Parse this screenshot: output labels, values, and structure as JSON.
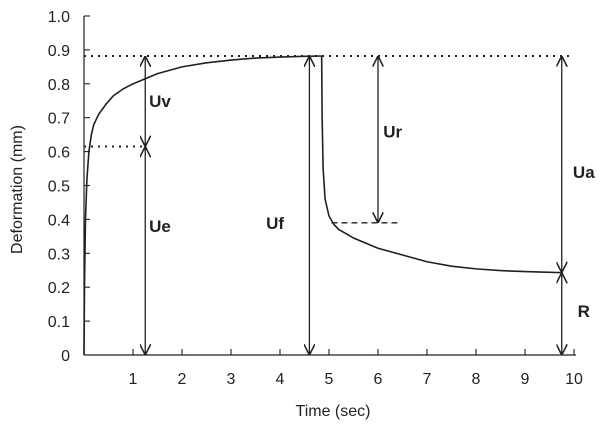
{
  "chart_data": {
    "type": "line",
    "title": "",
    "xlabel": "Time (sec)",
    "ylabel": "Deformation (mm)",
    "xlim": [
      0,
      10
    ],
    "ylim": [
      0,
      1.0
    ],
    "x_ticks": [
      1,
      2,
      3,
      4,
      5,
      6,
      7,
      8,
      9,
      10
    ],
    "y_ticks": [
      "0",
      "0.1",
      "0.2",
      "0.3",
      "0.4",
      "0.5",
      "0.6",
      "0.7",
      "0.8",
      "0.9",
      "1.0"
    ],
    "grid": false,
    "series": [
      {
        "x": [
          0,
          0.01,
          0.03,
          0.06,
          0.1,
          0.15,
          0.2,
          0.3,
          0.45,
          0.6,
          0.8,
          1.0,
          1.25,
          1.5,
          2.0,
          2.5,
          3.0,
          3.5,
          4.0,
          4.5,
          4.85
        ],
        "y": [
          0,
          0.2,
          0.4,
          0.52,
          0.6,
          0.65,
          0.68,
          0.71,
          0.74,
          0.765,
          0.785,
          0.8,
          0.815,
          0.83,
          0.85,
          0.862,
          0.87,
          0.876,
          0.879,
          0.881,
          0.882
        ]
      },
      {
        "x": [
          4.85,
          4.86,
          4.88,
          4.92,
          5.0,
          5.1,
          5.2,
          5.35,
          5.5,
          5.75,
          6.0,
          6.5,
          7.0,
          7.5,
          8.0,
          8.5,
          9.0,
          9.5,
          9.75
        ],
        "y": [
          0.882,
          0.7,
          0.55,
          0.46,
          0.41,
          0.385,
          0.37,
          0.358,
          0.345,
          0.33,
          0.315,
          0.295,
          0.275,
          0.262,
          0.254,
          0.249,
          0.246,
          0.244,
          0.243
        ]
      }
    ],
    "reference_levels": [
      {
        "y": 0.882,
        "from_x": 0,
        "to_x": 10,
        "style": "dotted"
      },
      {
        "y": 0.615,
        "from_x": 0,
        "to_x": 1.25,
        "style": "dotted"
      },
      {
        "y": 0.39,
        "from_x": 5.05,
        "to_x": 6.45,
        "style": "dashed"
      }
    ],
    "annotations": [
      {
        "label": "Uv",
        "x_line": 1.25,
        "from": 0.615,
        "to": 0.882,
        "label_x": 1.55,
        "label_y": 0.75
      },
      {
        "label": "Ue",
        "x_line": 1.25,
        "from": 0,
        "to": 0.615,
        "label_x": 1.55,
        "label_y": 0.38
      },
      {
        "label": "Uf",
        "x_line": 4.6,
        "from": 0,
        "to": 0.882,
        "label_x": 3.9,
        "label_y": 0.39
      },
      {
        "label": "Ur",
        "x_line": 6.0,
        "from": 0.39,
        "to": 0.882,
        "label_x": 6.3,
        "label_y": 0.66
      },
      {
        "label": "Ua",
        "x_line": 9.75,
        "from": 0.243,
        "to": 0.882,
        "label_x": 10.2,
        "label_y": 0.54
      },
      {
        "label": "R",
        "x_line": 9.75,
        "from": 0,
        "to": 0.243,
        "label_x": 10.2,
        "label_y": 0.13
      }
    ]
  }
}
